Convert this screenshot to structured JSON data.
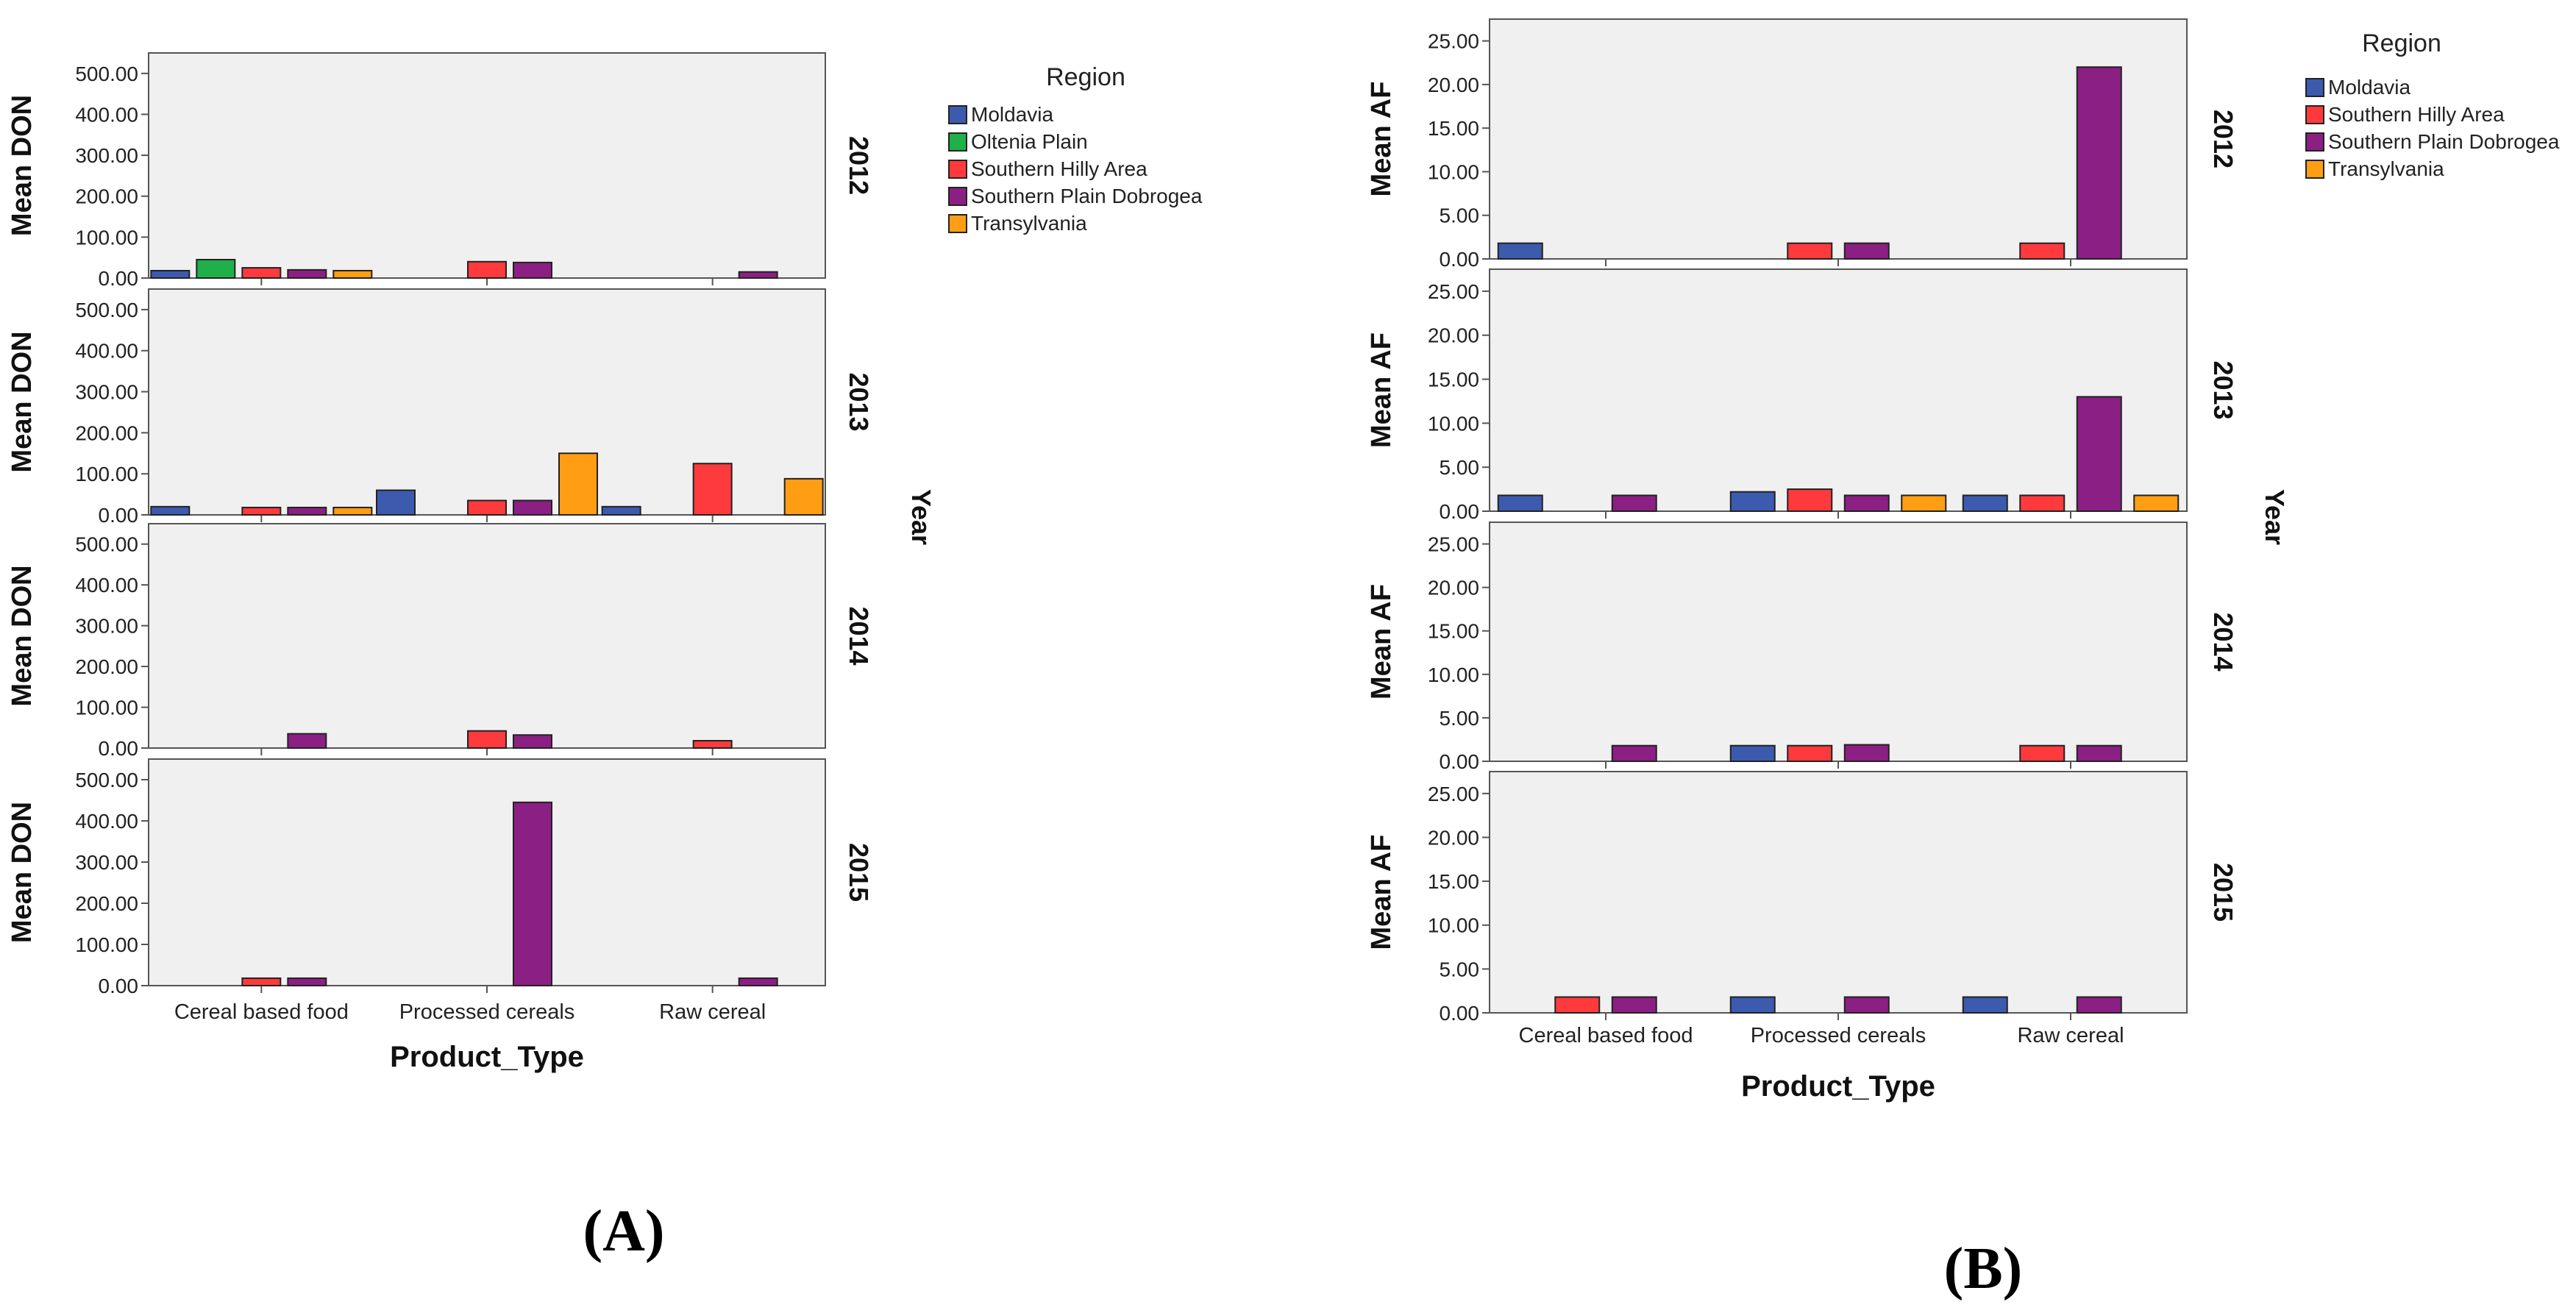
{
  "colors": {
    "Moldavia": "#3C5BAE",
    "Oltenia Plain": "#1FB04A",
    "Southern Hilly Area": "#FF3A3D",
    "Southern Plain Dobrogea": "#8B1F83",
    "Transylvania": "#FF9E12",
    "panel_bg": "#F0F0F0",
    "axis": "#555555"
  },
  "chart_data": [
    {
      "type": "bar",
      "panel_label": "(A)",
      "ylabel": "Mean DON",
      "xlabel": "Product_Type",
      "facet_label": "Year",
      "legend_title": "Region",
      "categories": [
        "Cereal based food",
        "Processed cereals",
        "Raw cereal"
      ],
      "series_names": [
        "Moldavia",
        "Oltenia Plain",
        "Southern Hilly Area",
        "Southern Plain Dobrogea",
        "Transylvania"
      ],
      "ylim": [
        0,
        550
      ],
      "yticks": [
        0,
        100,
        200,
        300,
        400,
        500
      ],
      "ytick_labels": [
        "0.00",
        "100.00",
        "200.00",
        "300.00",
        "400.00",
        "500.00"
      ],
      "facets": [
        {
          "label": "2012",
          "series": [
            {
              "name": "Moldavia",
              "values": [
                18,
                null,
                null
              ]
            },
            {
              "name": "Oltenia Plain",
              "values": [
                45,
                null,
                null
              ]
            },
            {
              "name": "Southern Hilly Area",
              "values": [
                25,
                40,
                null
              ]
            },
            {
              "name": "Southern Plain Dobrogea",
              "values": [
                20,
                38,
                15
              ]
            },
            {
              "name": "Transylvania",
              "values": [
                18,
                null,
                null
              ]
            }
          ]
        },
        {
          "label": "2013",
          "series": [
            {
              "name": "Moldavia",
              "values": [
                20,
                60,
                20
              ]
            },
            {
              "name": "Oltenia Plain",
              "values": [
                null,
                null,
                null
              ]
            },
            {
              "name": "Southern Hilly Area",
              "values": [
                18,
                35,
                125
              ]
            },
            {
              "name": "Southern Plain Dobrogea",
              "values": [
                18,
                35,
                null
              ]
            },
            {
              "name": "Transylvania",
              "values": [
                18,
                150,
                88
              ]
            }
          ]
        },
        {
          "label": "2014",
          "series": [
            {
              "name": "Moldavia",
              "values": [
                null,
                null,
                null
              ]
            },
            {
              "name": "Oltenia Plain",
              "values": [
                null,
                null,
                null
              ]
            },
            {
              "name": "Southern Hilly Area",
              "values": [
                null,
                42,
                18
              ]
            },
            {
              "name": "Southern Plain Dobrogea",
              "values": [
                35,
                32,
                null
              ]
            },
            {
              "name": "Transylvania",
              "values": [
                null,
                null,
                null
              ]
            }
          ]
        },
        {
          "label": "2015",
          "series": [
            {
              "name": "Moldavia",
              "values": [
                null,
                null,
                null
              ]
            },
            {
              "name": "Oltenia Plain",
              "values": [
                null,
                null,
                null
              ]
            },
            {
              "name": "Southern Hilly Area",
              "values": [
                18,
                null,
                null
              ]
            },
            {
              "name": "Southern Plain Dobrogea",
              "values": [
                18,
                445,
                18
              ]
            },
            {
              "name": "Transylvania",
              "values": [
                null,
                null,
                null
              ]
            }
          ]
        }
      ]
    },
    {
      "type": "bar",
      "panel_label": "(B)",
      "ylabel": "Mean AF",
      "xlabel": "Product_Type",
      "facet_label": "Year",
      "legend_title": "Region",
      "categories": [
        "Cereal based food",
        "Processed cereals",
        "Raw cereal"
      ],
      "series_names": [
        "Moldavia",
        "Southern Hilly Area",
        "Southern Plain Dobrogea",
        "Transylvania"
      ],
      "ylim": [
        0,
        27.5
      ],
      "yticks": [
        0,
        5,
        10,
        15,
        20,
        25
      ],
      "ytick_labels": [
        "0.00",
        "5.00",
        "10.00",
        "15.00",
        "20.00",
        "25.00"
      ],
      "facets": [
        {
          "label": "2012",
          "series": [
            {
              "name": "Moldavia",
              "values": [
                1.8,
                null,
                null
              ]
            },
            {
              "name": "Southern Hilly Area",
              "values": [
                null,
                1.8,
                1.8
              ]
            },
            {
              "name": "Southern Plain Dobrogea",
              "values": [
                null,
                1.8,
                22
              ]
            },
            {
              "name": "Transylvania",
              "values": [
                null,
                null,
                null
              ]
            }
          ]
        },
        {
          "label": "2013",
          "series": [
            {
              "name": "Moldavia",
              "values": [
                1.8,
                2.2,
                1.8
              ]
            },
            {
              "name": "Southern Hilly Area",
              "values": [
                null,
                2.5,
                1.8
              ]
            },
            {
              "name": "Southern Plain Dobrogea",
              "values": [
                1.8,
                1.8,
                13
              ]
            },
            {
              "name": "Transylvania",
              "values": [
                null,
                1.8,
                1.8
              ]
            }
          ]
        },
        {
          "label": "2014",
          "series": [
            {
              "name": "Moldavia",
              "values": [
                null,
                1.8,
                null
              ]
            },
            {
              "name": "Southern Hilly Area",
              "values": [
                null,
                1.8,
                1.8
              ]
            },
            {
              "name": "Southern Plain Dobrogea",
              "values": [
                1.8,
                1.9,
                1.8
              ]
            },
            {
              "name": "Transylvania",
              "values": [
                null,
                null,
                null
              ]
            }
          ]
        },
        {
          "label": "2015",
          "series": [
            {
              "name": "Moldavia",
              "values": [
                null,
                1.8,
                1.8
              ]
            },
            {
              "name": "Southern Hilly Area",
              "values": [
                1.8,
                null,
                null
              ]
            },
            {
              "name": "Southern Plain Dobrogea",
              "values": [
                1.8,
                1.8,
                1.8
              ]
            },
            {
              "name": "Transylvania",
              "values": [
                null,
                null,
                null
              ]
            }
          ]
        }
      ]
    }
  ]
}
